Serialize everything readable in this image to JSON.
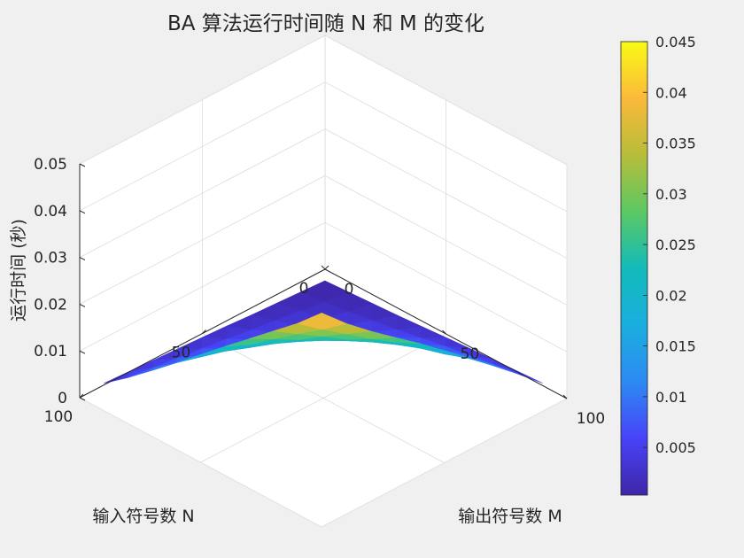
{
  "chart_data": {
    "type": "surface3d",
    "title": "BA 算法运行时间随 N 和 M 的变化",
    "xlabel": "输入符号数 N",
    "ylabel": "输出符号数 M",
    "zlabel": "运行时间 (秒)",
    "xlim": [
      0,
      100
    ],
    "ylim": [
      0,
      100
    ],
    "zlim": [
      0,
      0.05
    ],
    "xticks": [
      0,
      50,
      100
    ],
    "yticks": [
      0,
      50,
      100
    ],
    "zticks": [
      0,
      0.01,
      0.02,
      0.03,
      0.04,
      0.05
    ],
    "zticklabels": [
      "0",
      "0.01",
      "0.02",
      "0.03",
      "0.04",
      "0.05"
    ],
    "x": [
      5,
      15,
      25,
      35,
      45,
      55,
      65,
      75,
      85,
      95
    ],
    "y": [
      5,
      15,
      25,
      35,
      45,
      55,
      65,
      75,
      85,
      95
    ],
    "z": [
      [
        0.0003,
        0.0006,
        0.0009,
        0.0012,
        0.0016,
        0.002,
        0.0024,
        0.0027,
        0.003,
        0.0033
      ],
      [
        0.0006,
        0.0012,
        0.002,
        0.0028,
        0.0036,
        0.0046,
        0.0056,
        0.0064,
        0.0072,
        0.008
      ],
      [
        0.0009,
        0.0021,
        0.0033,
        0.0047,
        0.006,
        0.0075,
        0.0088,
        0.0102,
        0.0114,
        0.0125
      ],
      [
        0.0012,
        0.0028,
        0.0045,
        0.0063,
        0.0082,
        0.01,
        0.0118,
        0.0136,
        0.015,
        0.0168
      ],
      [
        0.0016,
        0.0035,
        0.0058,
        0.008,
        0.0103,
        0.0128,
        0.0148,
        0.017,
        0.019,
        0.0212
      ],
      [
        0.0019,
        0.0043,
        0.0069,
        0.0096,
        0.0124,
        0.0151,
        0.0178,
        0.0203,
        0.023,
        0.0255
      ],
      [
        0.0022,
        0.005,
        0.008,
        0.0112,
        0.0144,
        0.0176,
        0.0206,
        0.0236,
        0.0265,
        0.0295
      ],
      [
        0.0025,
        0.0057,
        0.0091,
        0.0128,
        0.0163,
        0.02,
        0.0235,
        0.027,
        0.0303,
        0.0336
      ],
      [
        0.0028,
        0.0064,
        0.0103,
        0.0143,
        0.0183,
        0.0224,
        0.0264,
        0.0303,
        0.034,
        0.038
      ],
      [
        0.0031,
        0.0071,
        0.0114,
        0.0158,
        0.0203,
        0.0248,
        0.0292,
        0.0336,
        0.038,
        0.043
      ]
    ],
    "colormap": [
      "#3e26a8",
      "#4743f8",
      "#2d8af3",
      "#1aaede",
      "#12bbba",
      "#5cc863",
      "#b7bd3a",
      "#fbb93b",
      "#f9fb15"
    ],
    "colorbar": {
      "ticks": [
        0.005,
        0.01,
        0.015,
        0.02,
        0.025,
        0.03,
        0.035,
        0.04,
        0.045
      ],
      "ticklabels": [
        "0.005",
        "0.01",
        "0.015",
        "0.02",
        "0.025",
        "0.03",
        "0.035",
        "0.04",
        "0.045"
      ],
      "range": [
        0.0003,
        0.045
      ]
    },
    "grid": true,
    "view": "azimuth 135, elevation 30"
  }
}
